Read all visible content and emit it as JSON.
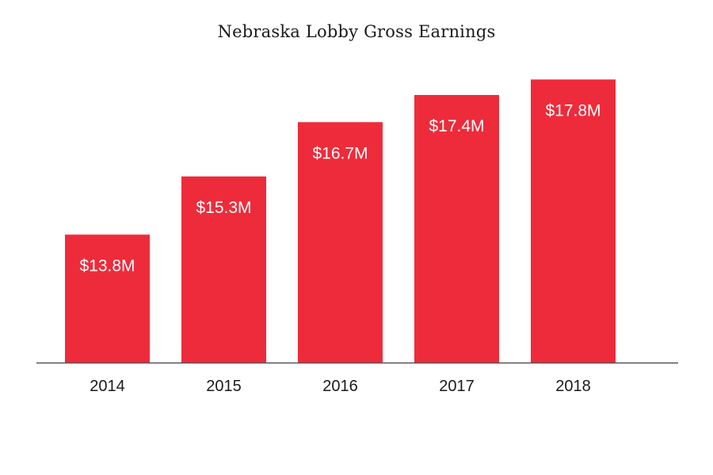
{
  "chart_data": {
    "type": "bar",
    "title": "Nebraska Lobby Gross Earnings",
    "categories": [
      "2014",
      "2015",
      "2016",
      "2017",
      "2018"
    ],
    "values": [
      13.8,
      15.3,
      16.7,
      17.4,
      17.8
    ],
    "value_labels": [
      "$13.8M",
      "$15.3M",
      "$16.7M",
      "$17.4M",
      "$17.8M"
    ],
    "xlabel": "",
    "ylabel": "",
    "ylim": [
      10.5,
      18.4
    ],
    "grid": false,
    "legend": "none"
  },
  "colors": {
    "bar": "#ee2b3a",
    "axis": "#555555",
    "text": "#1a1a1a",
    "background": "#ffffff"
  }
}
